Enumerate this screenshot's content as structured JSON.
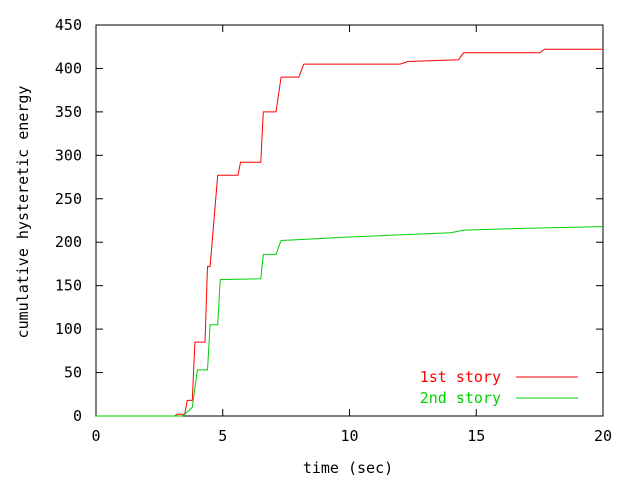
{
  "chart_data": {
    "type": "line",
    "title": "",
    "xlabel": "time (sec)",
    "ylabel": "cumulative hysteretic energy",
    "xlim": [
      0,
      20
    ],
    "ylim": [
      0,
      450
    ],
    "xticks": [
      0,
      5,
      10,
      15,
      20
    ],
    "yticks": [
      0,
      50,
      100,
      150,
      200,
      250,
      300,
      350,
      400,
      450
    ],
    "grid": false,
    "legend_position": "bottom-right",
    "series": [
      {
        "name": "1st story",
        "color": "#ff0000",
        "x": [
          0,
          3.1,
          3.2,
          3.5,
          3.6,
          3.8,
          3.9,
          4.3,
          4.4,
          4.5,
          4.8,
          4.9,
          5.6,
          5.7,
          6.5,
          6.6,
          7.1,
          7.3,
          8.0,
          8.2,
          12.0,
          12.3,
          14.3,
          14.5,
          17.5,
          17.7,
          20.0
        ],
        "y": [
          0,
          0,
          2,
          2,
          18,
          18,
          85,
          85,
          172,
          172,
          277,
          277,
          277,
          292,
          292,
          350,
          350,
          390,
          390,
          405,
          405,
          408,
          410,
          418,
          418,
          422,
          422
        ]
      },
      {
        "name": "2nd story",
        "color": "#00d000",
        "x": [
          0,
          3.4,
          3.5,
          3.8,
          4.0,
          4.4,
          4.5,
          4.8,
          4.9,
          6.5,
          6.6,
          7.1,
          7.3,
          8.0,
          10.0,
          14.0,
          14.5,
          17.0,
          20.0
        ],
        "y": [
          0,
          0,
          2,
          10,
          53,
          53,
          105,
          105,
          157,
          158,
          186,
          186,
          202,
          203,
          206,
          211,
          214,
          216,
          218
        ]
      }
    ]
  }
}
